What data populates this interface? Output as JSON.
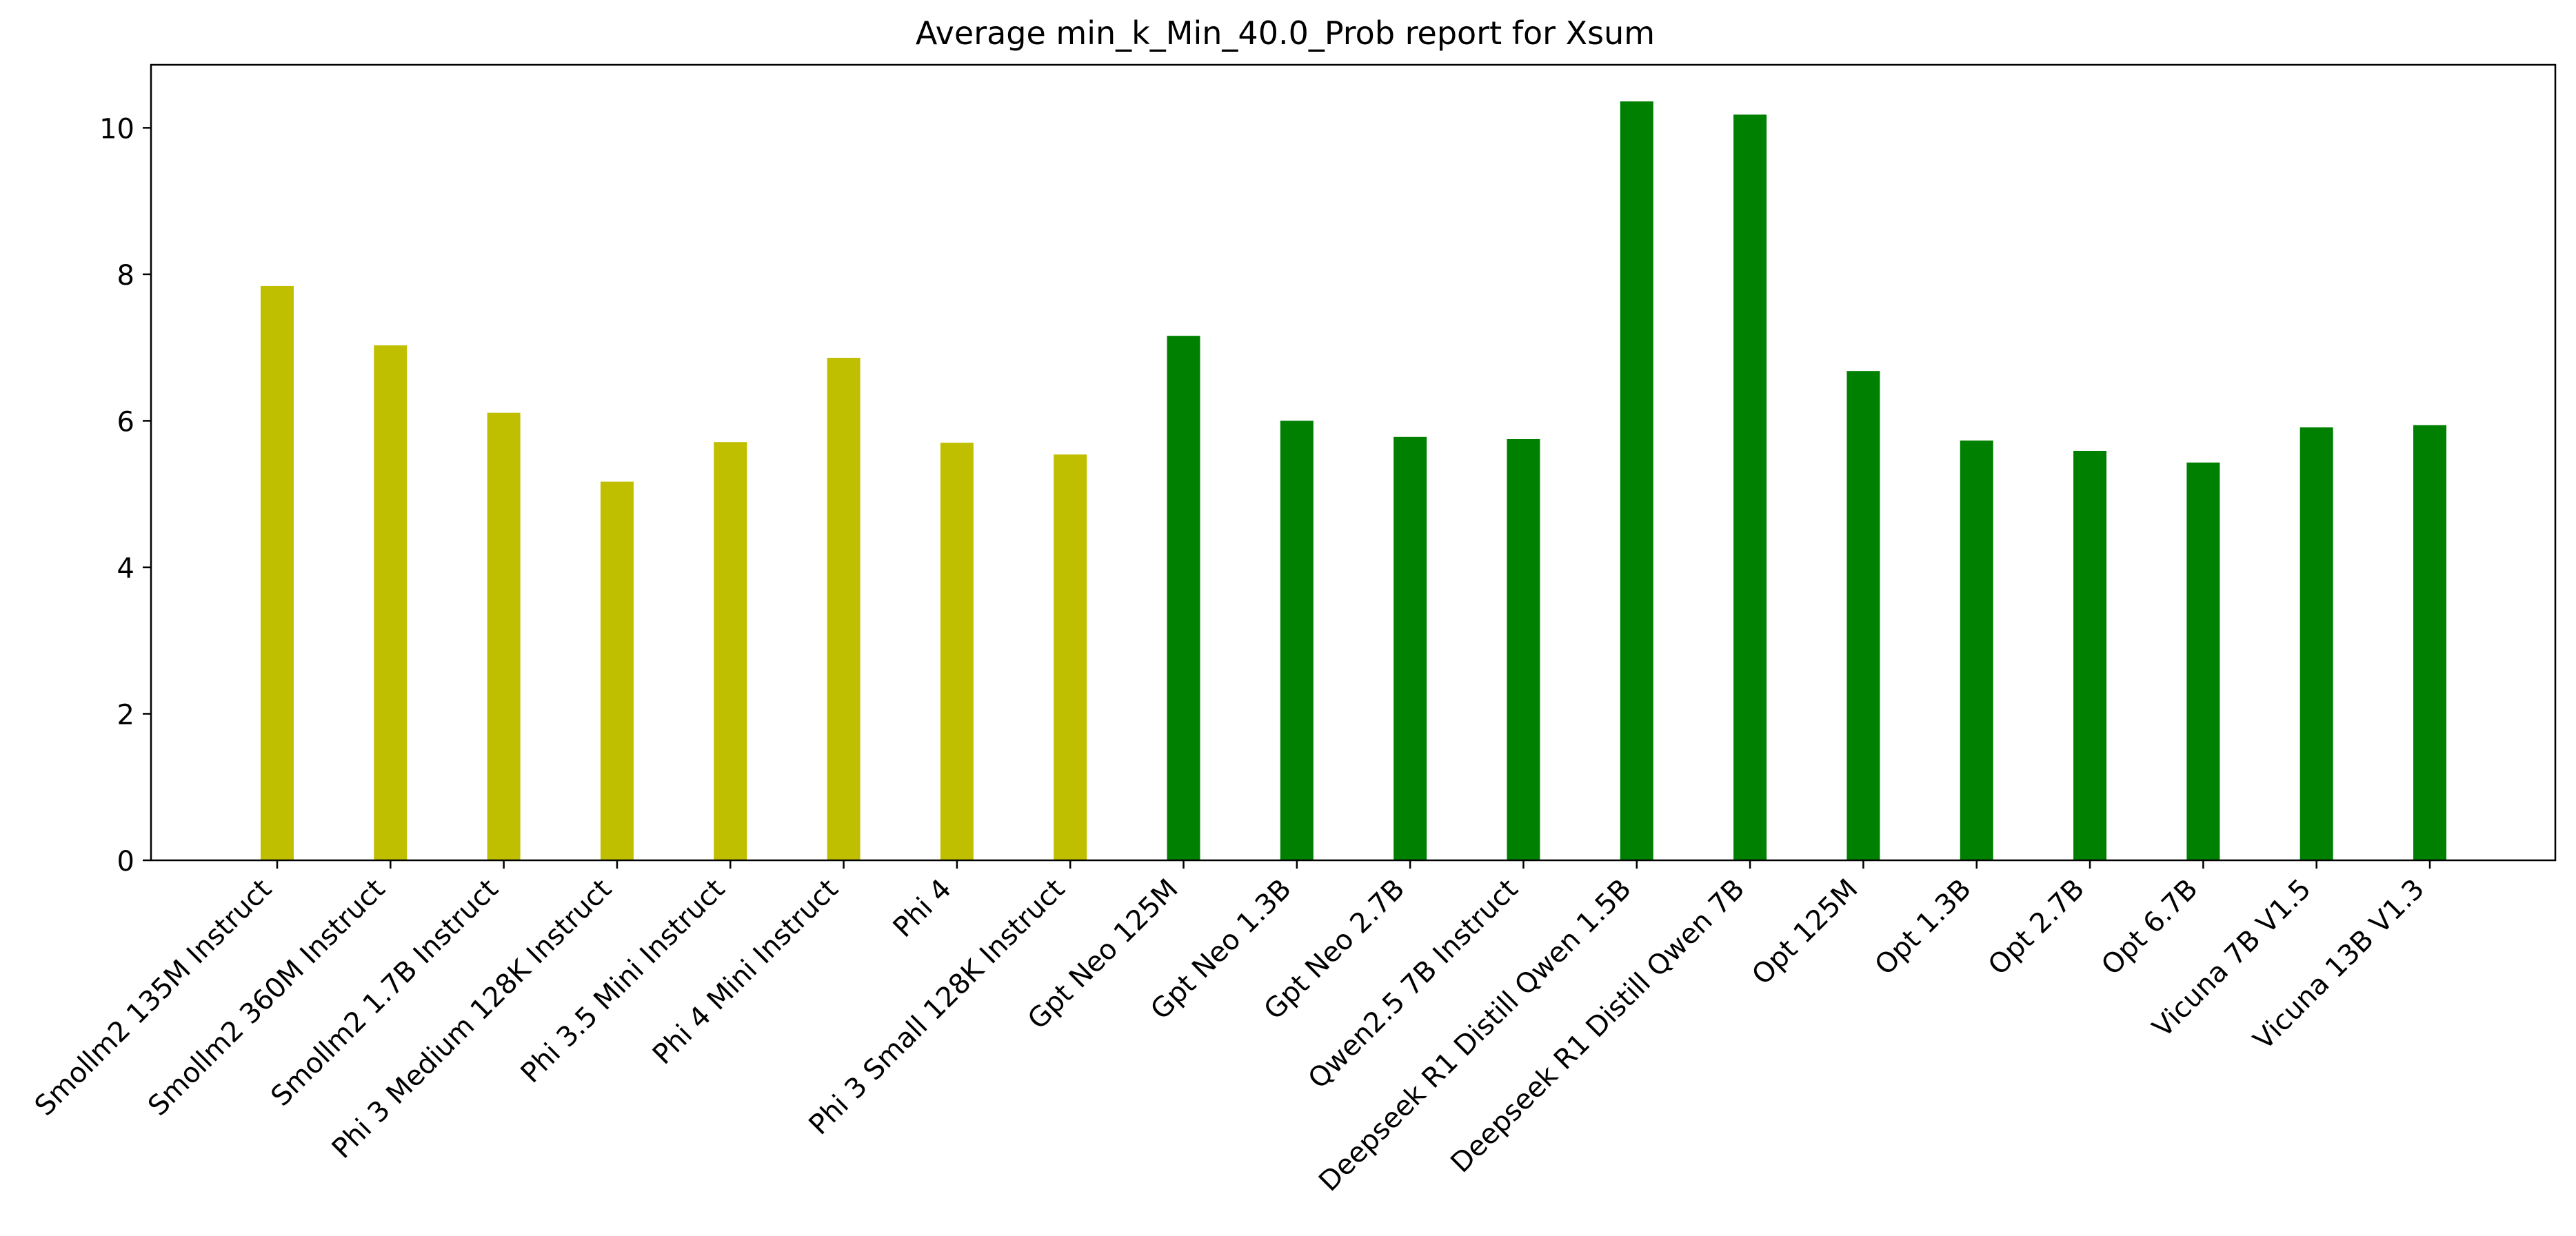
{
  "chart_data": {
    "type": "bar",
    "title": "Average min_k_Min_40.0_Prob report for Xsum",
    "xlabel": "",
    "ylabel": "",
    "ylim": [
      0,
      10.86
    ],
    "yticks": [
      0,
      2,
      4,
      6,
      8,
      10
    ],
    "grid": false,
    "legend": "none",
    "categories": [
      "Smollm2 135M Instruct",
      "Smollm2 360M Instruct",
      "Smollm2 1.7B Instruct",
      "Phi 3 Medium 128K Instruct",
      "Phi 3.5 Mini Instruct",
      "Phi 4 Mini Instruct",
      "Phi 4",
      "Phi 3 Small 128K Instruct",
      "Gpt Neo 125M",
      "Gpt Neo 1.3B",
      "Gpt Neo 2.7B",
      "Qwen2.5 7B Instruct",
      "Deepseek R1 Distill Qwen 1.5B",
      "Deepseek R1 Distill Qwen 7B",
      "Opt 125M",
      "Opt 1.3B",
      "Opt 2.7B",
      "Opt 6.7B",
      "Vicuna 7B V1.5",
      "Vicuna 13B V1.3"
    ],
    "values": [
      7.84,
      7.03,
      6.11,
      5.17,
      5.71,
      6.86,
      5.7,
      5.54,
      7.16,
      6.0,
      5.78,
      5.75,
      10.36,
      10.18,
      6.68,
      5.73,
      5.59,
      5.43,
      5.91,
      5.94
    ],
    "bar_colors": [
      "#bfbf00",
      "#bfbf00",
      "#bfbf00",
      "#bfbf00",
      "#bfbf00",
      "#bfbf00",
      "#bfbf00",
      "#bfbf00",
      "#008000",
      "#008000",
      "#008000",
      "#008000",
      "#008000",
      "#008000",
      "#008000",
      "#008000",
      "#008000",
      "#008000",
      "#008000",
      "#008000"
    ]
  }
}
